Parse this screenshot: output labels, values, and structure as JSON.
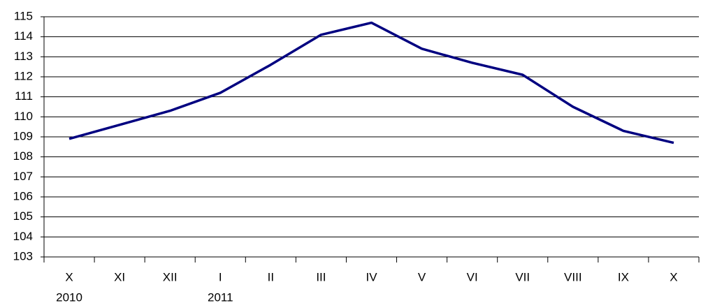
{
  "chart_data": {
    "type": "line",
    "categories": [
      "X",
      "XI",
      "XII",
      "I",
      "II",
      "III",
      "IV",
      "V",
      "VI",
      "VII",
      "VIII",
      "IX",
      "X"
    ],
    "year_labels": [
      "2010",
      null,
      null,
      "2011",
      null,
      null,
      null,
      null,
      null,
      null,
      null,
      null,
      null
    ],
    "series": [
      {
        "color": "#000080",
        "values": [
          108.9,
          109.6,
          110.3,
          111.2,
          112.6,
          114.1,
          114.7,
          113.4,
          112.7,
          112.1,
          110.5,
          109.3,
          108.7
        ]
      }
    ],
    "ylim": [
      103,
      115
    ],
    "yticks": [
      103,
      104,
      105,
      106,
      107,
      108,
      109,
      110,
      111,
      112,
      113,
      114,
      115
    ],
    "grid": true
  }
}
